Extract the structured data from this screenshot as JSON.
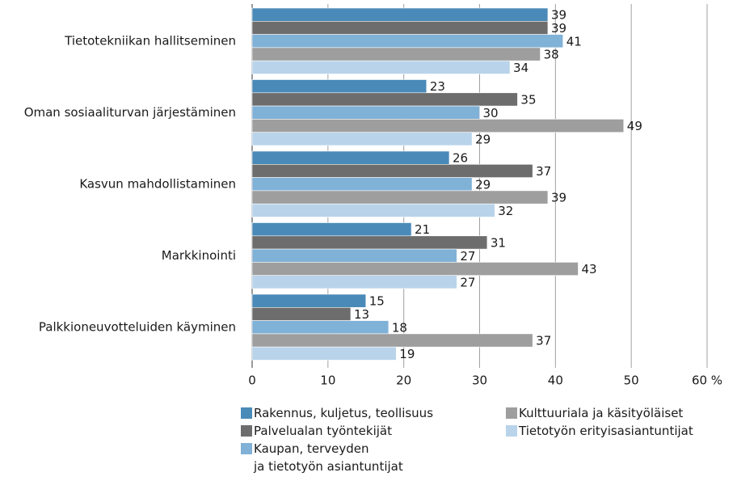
{
  "chart_data": {
    "type": "barh",
    "categories": [
      "Tietotekniikan hallitseminen",
      "Oman sosiaaliturvan järjestäminen",
      "Kasvun mahdollistaminen",
      "Markkinointi",
      "Palkkioneuvotteluiden käyminen"
    ],
    "series": [
      {
        "name": "Rakennus, kuljetus, teollisuus",
        "color": "#4a8ab8",
        "values": [
          39,
          23,
          26,
          21,
          15
        ]
      },
      {
        "name": "Palvelualan työntekijät",
        "color": "#6d6d6d",
        "values": [
          39,
          35,
          37,
          31,
          13
        ]
      },
      {
        "name": "Kaupan, terveyden\nja tietotyön asiantuntijat",
        "color": "#80b1d7",
        "values": [
          41,
          30,
          29,
          27,
          18
        ]
      },
      {
        "name": "Kulttuuriala ja käsityöläiset",
        "color": "#9e9e9e",
        "values": [
          38,
          49,
          39,
          43,
          37
        ]
      },
      {
        "name": "Tietotyön erityisasiantuntijat",
        "color": "#b9d4ea",
        "values": [
          34,
          29,
          32,
          27,
          19
        ]
      }
    ],
    "xlim": [
      0,
      60
    ],
    "xticks": [
      0,
      10,
      20,
      30,
      40,
      50,
      {
        "value": 60,
        "label": "60 %"
      }
    ],
    "grid": true
  }
}
